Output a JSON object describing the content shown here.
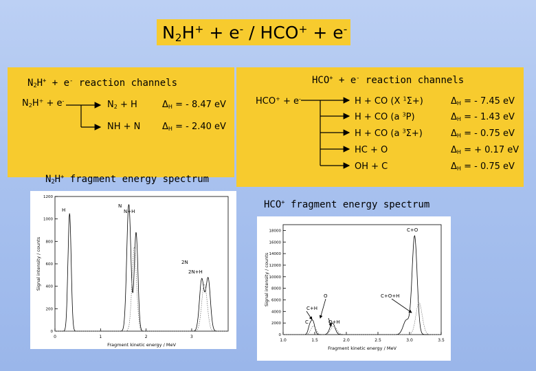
{
  "title": {
    "part1": "N",
    "sub": "2",
    "part2": "H",
    "sup1": "+",
    "part3": " + e",
    "sup2": "-",
    "part4": " / HCO",
    "sup3": "+",
    "part5": " + e",
    "sup4": "-"
  },
  "left_panel": {
    "header": {
      "a": "N",
      "sub": "2",
      "b": "H",
      "sup1": "+",
      "c": " + e",
      "sup2": "-",
      "d": " reaction channels"
    },
    "reactant": {
      "a": "N",
      "sub": "2",
      "b": "H",
      "sup1": "+",
      "c": " + e",
      "sup2": "-"
    },
    "channels": [
      {
        "product": "N2 + H",
        "product_html": {
          "a": "N",
          "sub": "2",
          "b": " + H"
        },
        "delta_symbol": "Δ",
        "delta_sub": "H",
        "value": " = - 8.47 eV"
      },
      {
        "product": "NH + N",
        "delta_symbol": "Δ",
        "delta_sub": "H",
        "value": " = - 2.40 eV"
      }
    ],
    "spectrum_title": {
      "a": "N",
      "sub": "2",
      "b": "H",
      "sup": "+",
      "c": " fragment energy spectrum"
    }
  },
  "right_panel": {
    "header": {
      "a": "HCO",
      "sup1": "+",
      "b": " + e",
      "sup2": "-",
      "c": " reaction channels"
    },
    "reactant": {
      "a": "HCO",
      "sup1": "+",
      "b": " + e",
      "sup2": "-"
    },
    "channels": [
      {
        "product_a": "H + CO (X ",
        "product_sup": "1",
        "product_b": "Σ+)",
        "delta_symbol": "Δ",
        "delta_sub": "H",
        "value": " = - 7.45 eV"
      },
      {
        "product_a": "H + CO (a ",
        "product_sup": "3",
        "product_b": "P)",
        "delta_symbol": "Δ",
        "delta_sub": "H",
        "value": " = - 1.43 eV"
      },
      {
        "product_a": "H + CO (a ",
        "product_sup": "3",
        "product_b": "Σ+)",
        "delta_symbol": "Δ",
        "delta_sub": "H",
        "value": " = - 0.75 eV"
      },
      {
        "product_a": "HC + O",
        "product_sup": "",
        "product_b": "",
        "delta_symbol": "Δ",
        "delta_sub": "H",
        "value": " = + 0.17 eV"
      },
      {
        "product_a": "OH + C",
        "product_sup": "",
        "product_b": "",
        "delta_symbol": "Δ",
        "delta_sub": "H",
        "value": " = - 0.75 eV"
      }
    ]
  },
  "hco_spectrum_title": {
    "a": "HCO",
    "sup": "+",
    "b": " fragment energy spectrum"
  },
  "chart_data": [
    {
      "type": "line",
      "title": "",
      "xlabel": "Fragment kinetic energy / MeV",
      "ylabel": "Signal intensity / counts",
      "xlim": [
        0,
        3.8
      ],
      "ylim": [
        0,
        1200
      ],
      "xticks": [
        0,
        1,
        2,
        3
      ],
      "yticks": [
        0,
        200,
        400,
        600,
        800,
        1000,
        1200
      ],
      "ytick_labels": [
        "0",
        "200",
        "400",
        "600",
        "800",
        "1000",
        "1200"
      ],
      "peak_labels": [
        "H",
        "N",
        "N+H",
        "2N",
        "2N+H"
      ],
      "series": [
        {
          "peaks": [
            [
              0.32,
              1050,
              0.035
            ],
            [
              1.62,
              1130,
              0.045
            ],
            [
              1.78,
              880,
              0.04
            ],
            [
              3.22,
              460,
              0.05
            ],
            [
              3.36,
              470,
              0.05
            ]
          ]
        },
        {
          "style": "dotted",
          "peaks": [
            [
              1.74,
              750,
              0.05
            ],
            [
              3.28,
              420,
              0.06
            ]
          ]
        }
      ]
    },
    {
      "type": "line",
      "title": "",
      "xlabel": "Fragment kinetic energy / MeV",
      "ylabel": "Signal intensity / counts",
      "xlim": [
        1.0,
        3.5
      ],
      "ylim": [
        0,
        19000
      ],
      "xticks": [
        1.0,
        1.5,
        2.0,
        2.5,
        3.0,
        3.5
      ],
      "yticks": [
        0,
        2000,
        4000,
        6000,
        8000,
        10000,
        12000,
        14000,
        16000,
        18000
      ],
      "peak_labels": [
        "C+O",
        "O",
        "C+O+H",
        "C+H",
        "C",
        "O+H"
      ],
      "series": [
        {
          "peaks": [
            [
              1.42,
              1300,
              0.025
            ],
            [
              1.47,
              2300,
              0.03
            ],
            [
              1.78,
              2000,
              0.04
            ],
            [
              3.08,
              17000,
              0.04
            ],
            [
              2.95,
              2500,
              0.05
            ]
          ]
        },
        {
          "style": "dotted",
          "peaks": [
            [
              1.48,
              1500,
              0.04
            ],
            [
              1.8,
              1400,
              0.05
            ],
            [
              3.15,
              5500,
              0.05
            ]
          ]
        }
      ]
    }
  ]
}
